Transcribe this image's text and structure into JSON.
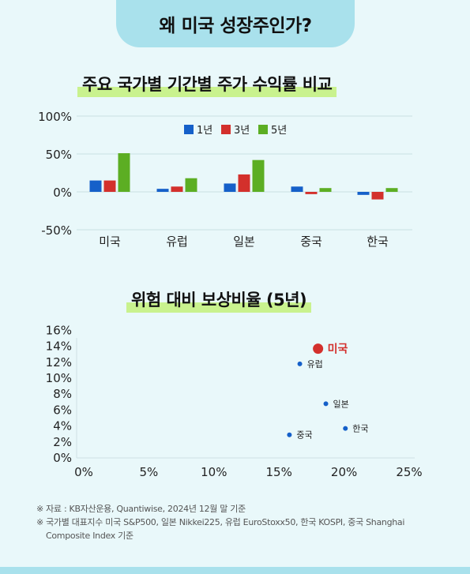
{
  "header": {
    "title": "왜 미국 성장주인가?"
  },
  "colors": {
    "s1": "#1560c9",
    "s3": "#d3302c",
    "s5": "#5cae23",
    "usa": "#d3302c",
    "point": "#1560c9"
  },
  "chart_data": [
    {
      "type": "bar",
      "title": "주요 국가별 기간별 주가 수익률 비교",
      "categories": [
        "미국",
        "유럽",
        "일본",
        "중국",
        "한국"
      ],
      "series": [
        {
          "name": "1년",
          "values": [
            15,
            4,
            11,
            7,
            -4
          ]
        },
        {
          "name": "3년",
          "values": [
            15,
            7,
            23,
            -3,
            -10
          ]
        },
        {
          "name": "5년",
          "values": [
            51,
            18,
            42,
            5,
            5
          ]
        }
      ],
      "yticks": [
        "100%",
        "50%",
        "0%",
        "-50%"
      ],
      "ylim": [
        -50,
        100
      ],
      "legend": "top-center",
      "grid": true
    },
    {
      "type": "scatter",
      "title": "위험 대비 보상비율 (5년)",
      "points": [
        {
          "label": "미국",
          "x": 18,
          "y": 13.6,
          "highlight": true
        },
        {
          "label": "유럽",
          "x": 16.6,
          "y": 11.7
        },
        {
          "label": "일본",
          "x": 18.6,
          "y": 6.7
        },
        {
          "label": "한국",
          "x": 20.1,
          "y": 3.6
        },
        {
          "label": "중국",
          "x": 15.8,
          "y": 2.8
        }
      ],
      "xticks": [
        "0%",
        "5%",
        "10%",
        "15%",
        "20%",
        "25%"
      ],
      "yticks": [
        "16%",
        "14%",
        "12%",
        "10%",
        "8%",
        "6%",
        "4%",
        "2%",
        "0%"
      ],
      "xlim": [
        0,
        25
      ],
      "ylim": [
        0,
        16
      ]
    }
  ],
  "notes": [
    "※ 자료 : KB자산운용, Quantiwise, 2024년 12월 말 기준",
    "※ 국가별 대표지수 미국 S&P500, 일본 Nikkei225, 유럽 EuroStoxx50, 한국 KOSPI, 중국 Shanghai",
    "Composite Index 기준"
  ]
}
